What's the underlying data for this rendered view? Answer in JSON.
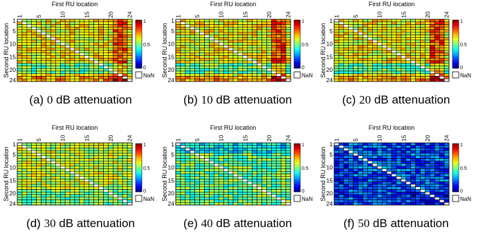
{
  "figure": {
    "x_axis_label": "First RU location",
    "y_axis_label": "Second RU location",
    "x_ticks": [
      1,
      5,
      10,
      15,
      20,
      24
    ],
    "y_ticks": [
      1,
      5,
      10,
      15,
      20,
      24
    ],
    "colorbar_ticks": [
      "1",
      "0.5",
      "0"
    ],
    "nan_label": "NaN"
  },
  "chart_data": [
    {
      "type": "heatmap",
      "panel_label": "(a)",
      "attenuation": "0",
      "unit_text": "dB attenuation",
      "xlabel": "First RU location",
      "ylabel": "Second RU location",
      "rows": 24,
      "cols": 24,
      "value_range": [
        0,
        1
      ],
      "diagonal": "NaN",
      "typical_value": 0.62
    },
    {
      "type": "heatmap",
      "panel_label": "(b)",
      "attenuation": "10",
      "unit_text": "dB attenuation",
      "xlabel": "First RU location",
      "ylabel": "Second RU location",
      "rows": 24,
      "cols": 24,
      "value_range": [
        0,
        1
      ],
      "diagonal": "NaN",
      "typical_value": 0.62
    },
    {
      "type": "heatmap",
      "panel_label": "(c)",
      "attenuation": "20",
      "unit_text": "dB attenuation",
      "xlabel": "First RU location",
      "ylabel": "Second RU location",
      "rows": 24,
      "cols": 24,
      "value_range": [
        0,
        1
      ],
      "diagonal": "NaN",
      "typical_value": 0.62
    },
    {
      "type": "heatmap",
      "panel_label": "(d)",
      "attenuation": "30",
      "unit_text": "dB attenuation",
      "xlabel": "First RU location",
      "ylabel": "Second RU location",
      "rows": 24,
      "cols": 24,
      "value_range": [
        0,
        1
      ],
      "diagonal": "NaN",
      "typical_value": 0.58
    },
    {
      "type": "heatmap",
      "panel_label": "(e)",
      "attenuation": "40",
      "unit_text": "dB attenuation",
      "xlabel": "First RU location",
      "ylabel": "Second RU location",
      "rows": 24,
      "cols": 24,
      "value_range": [
        0,
        1
      ],
      "diagonal": "NaN",
      "typical_value": 0.48
    },
    {
      "type": "heatmap",
      "panel_label": "(f)",
      "attenuation": "50",
      "unit_text": "dB attenuation",
      "xlabel": "First RU location",
      "ylabel": "Second RU location",
      "rows": 24,
      "cols": 24,
      "value_range": [
        0,
        1
      ],
      "diagonal": "NaN",
      "typical_value": 0.22
    }
  ]
}
